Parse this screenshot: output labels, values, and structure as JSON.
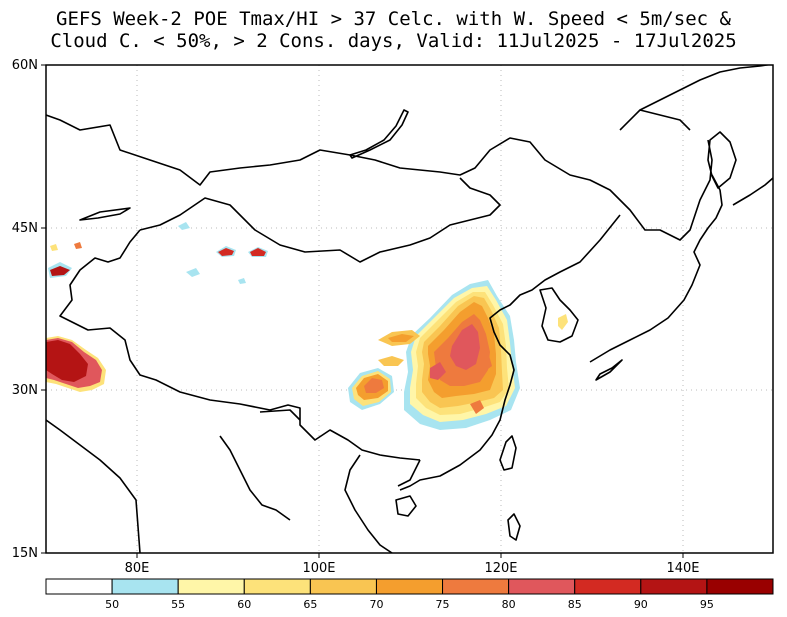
{
  "title": {
    "line1": "GEFS Week-2 POE Tmax/HI > 37 Celc. with W. Speed < 5m/sec &",
    "line2": "Cloud C. < 50%, > 2 Cons. days, Valid: 11Jul2025 - 17Jul2025"
  },
  "axes": {
    "lat_labels": [
      "60N",
      "45N",
      "30N",
      "15N"
    ],
    "lon_labels": [
      "80E",
      "100E",
      "120E",
      "140E"
    ],
    "lon_range": [
      70,
      150
    ],
    "lat_range": [
      15,
      60
    ]
  },
  "colorbar": {
    "ticks": [
      "50",
      "55",
      "60",
      "65",
      "70",
      "75",
      "80",
      "85",
      "90",
      "95"
    ],
    "colors": [
      "#ffffff",
      "#a8e4f0",
      "#fff6a8",
      "#fde27a",
      "#f9c552",
      "#f49e2e",
      "#ee7a3e",
      "#e0575c",
      "#d32a22",
      "#b41414",
      "#990000"
    ]
  },
  "map_layers": {
    "coastline_color": "#000000",
    "gridline_color": "#bbbbbb"
  }
}
